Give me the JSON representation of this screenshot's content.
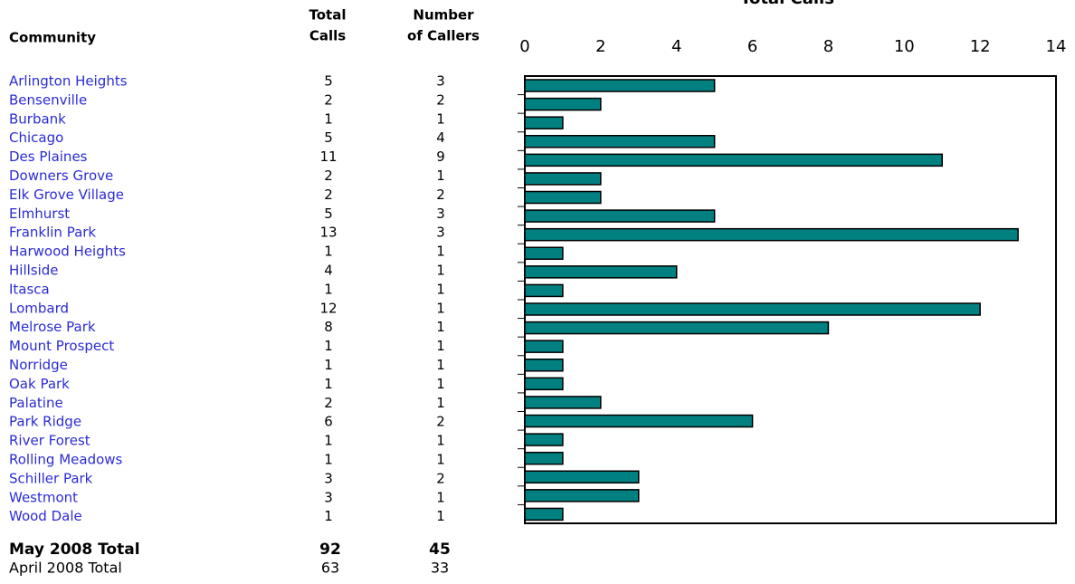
{
  "chart_data": {
    "type": "bar",
    "orientation": "horizontal",
    "title": "Total Calls",
    "categories": [
      "Arlington Heights",
      "Bensenville",
      "Burbank",
      "Chicago",
      "Des Plaines",
      "Downers Grove",
      "Elk Grove Village",
      "Elmhurst",
      "Franklin Park",
      "Harwood Heights",
      "Hillside",
      "Itasca",
      "Lombard",
      "Melrose Park",
      "Mount Prospect",
      "Norridge",
      "Oak Park",
      "Palatine",
      "Park Ridge",
      "River Forest",
      "Rolling Meadows",
      "Schiller Park",
      "Westmont",
      "Wood Dale"
    ],
    "values": [
      5,
      2,
      1,
      5,
      11,
      2,
      2,
      5,
      13,
      1,
      4,
      1,
      12,
      8,
      1,
      1,
      1,
      2,
      6,
      1,
      1,
      3,
      3,
      1
    ],
    "color": "#008080",
    "xlim": [
      0,
      14
    ],
    "xticks": [
      0,
      2,
      4,
      6,
      8,
      10,
      12,
      14
    ]
  },
  "table": {
    "headers": [
      [
        "Community"
      ],
      [
        "Total",
        "Calls"
      ],
      [
        "Number",
        "of Callers"
      ]
    ],
    "callers": [
      3,
      2,
      1,
      4,
      9,
      1,
      2,
      3,
      3,
      1,
      1,
      1,
      1,
      1,
      1,
      1,
      1,
      1,
      2,
      1,
      1,
      2,
      1,
      1
    ],
    "totals": [
      {
        "label": "May 2008 Total",
        "calls": 92,
        "callers": 45
      },
      {
        "label": "April 2008 Total",
        "calls": 63,
        "callers": 33
      }
    ]
  }
}
